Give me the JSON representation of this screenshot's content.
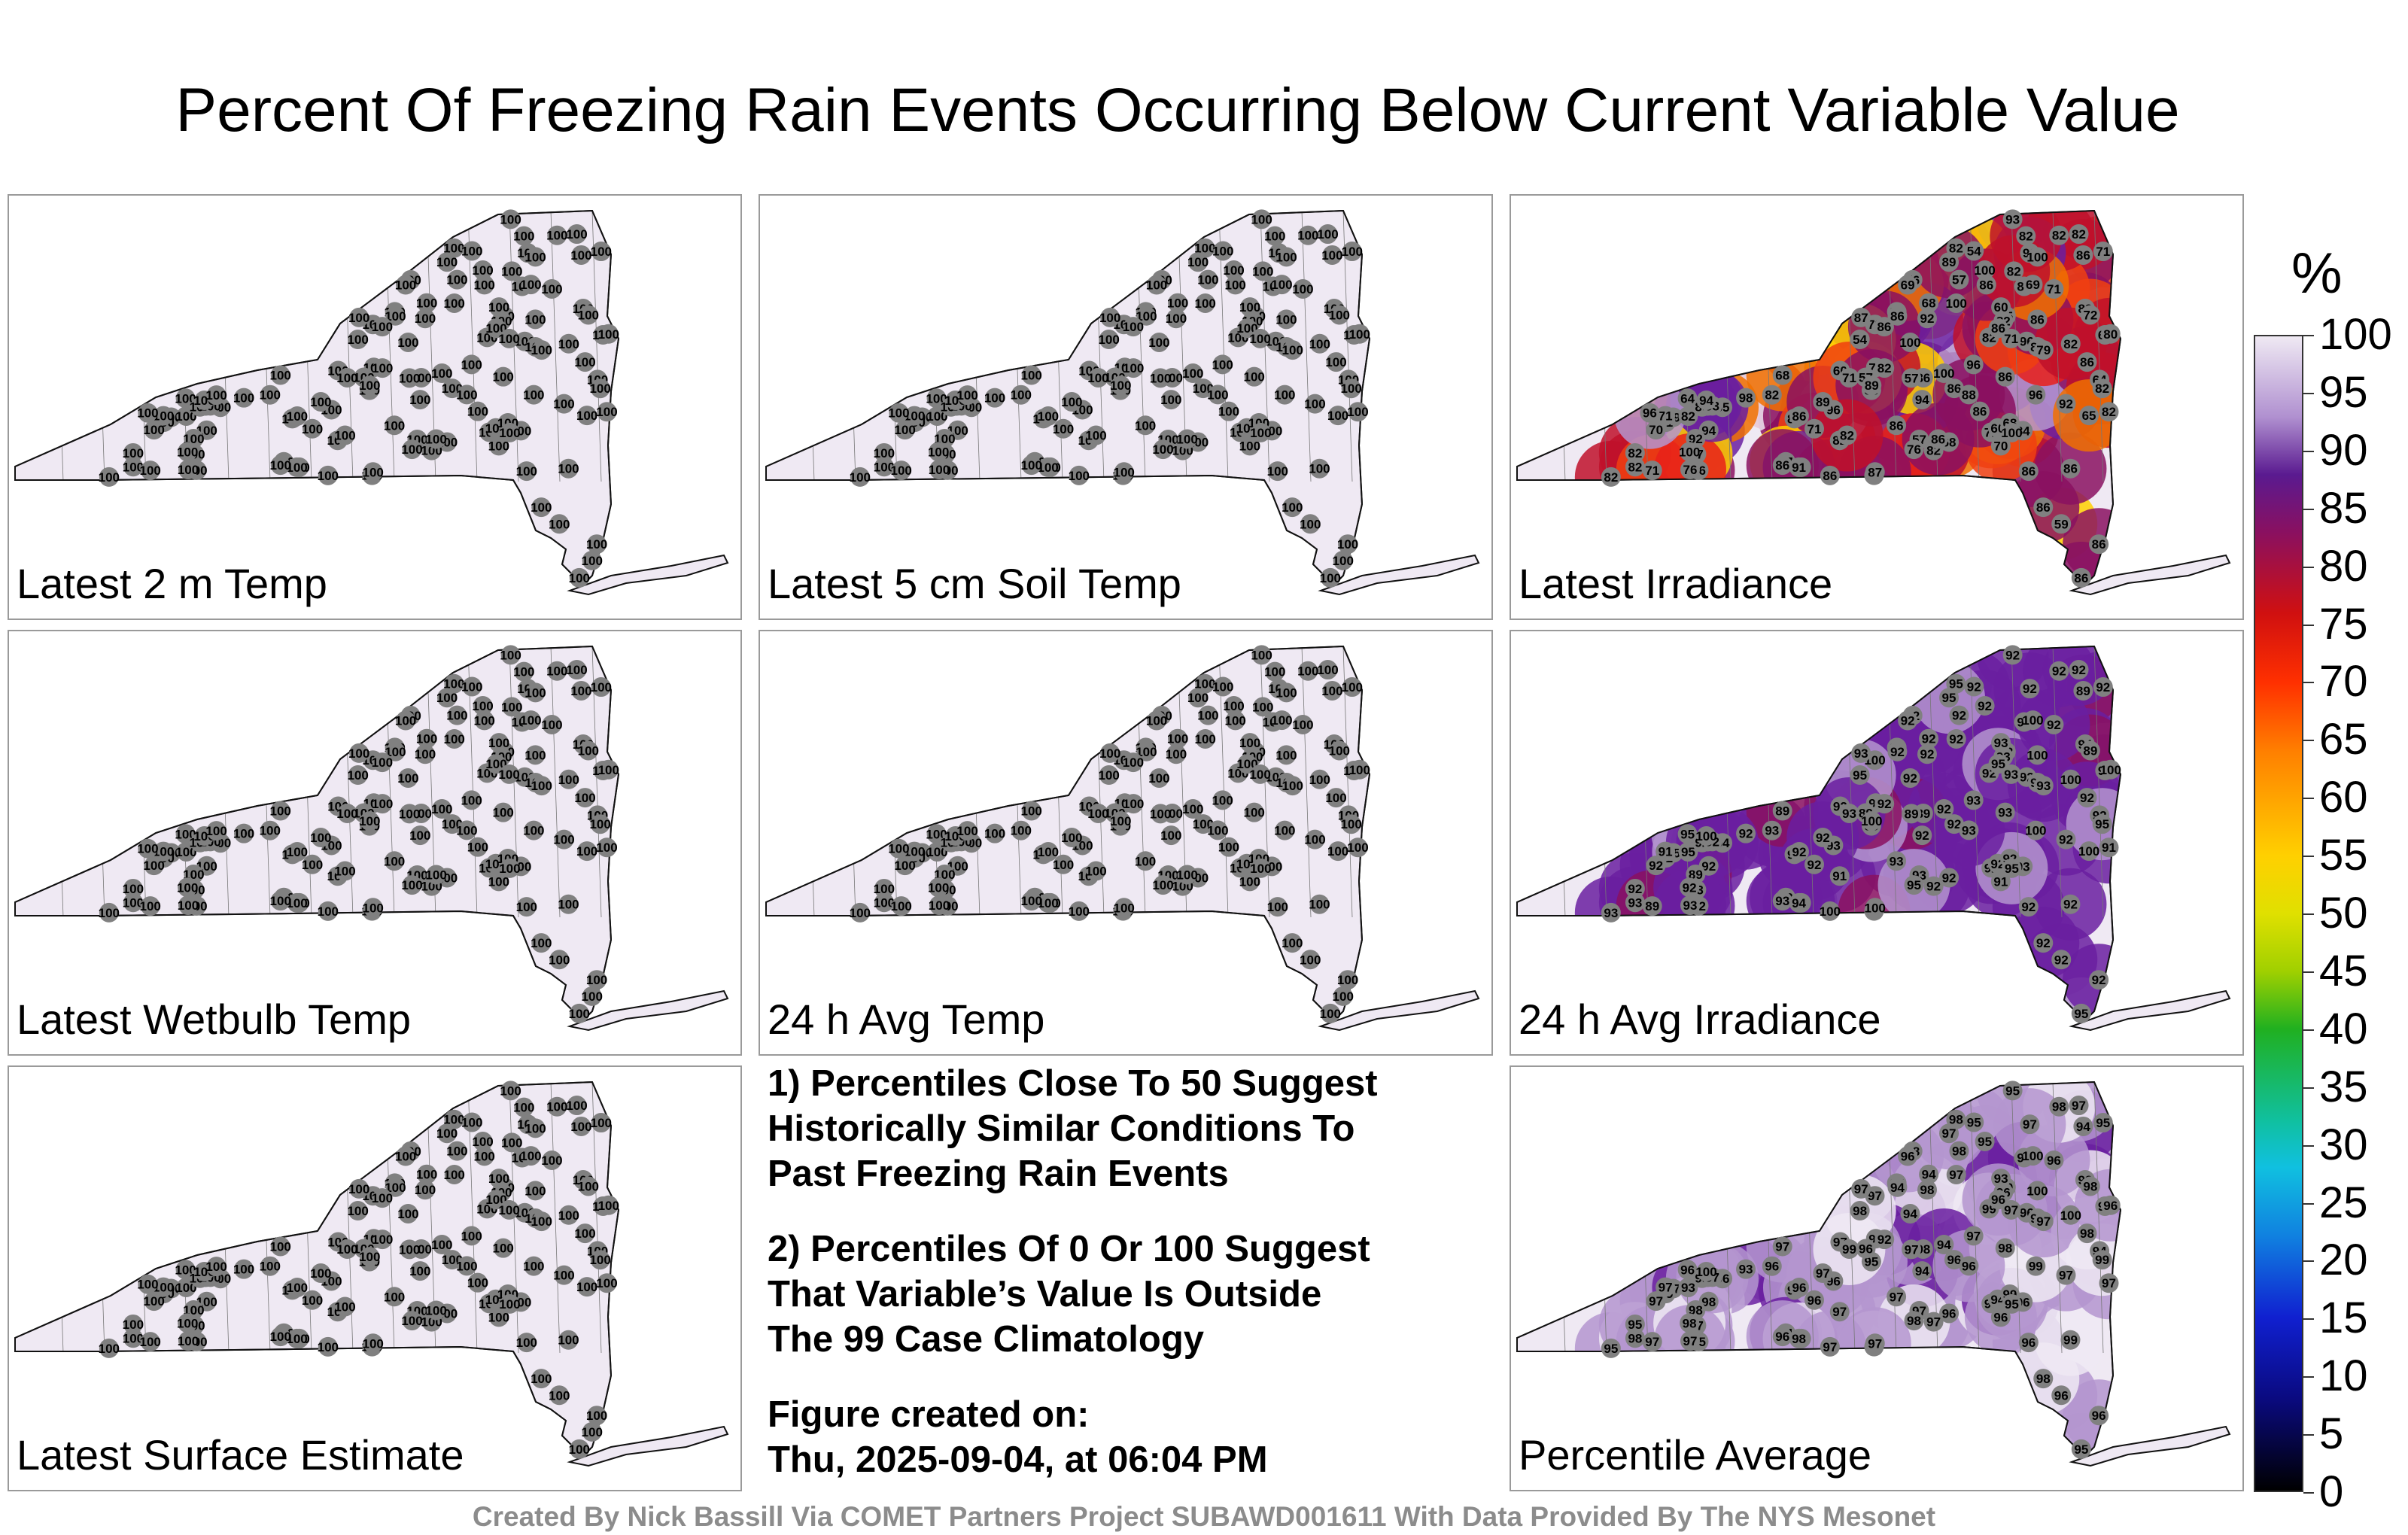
{
  "title": "Percent Of Freezing Rain Events Occurring Below Current Variable Value",
  "panels": [
    {
      "label": "Latest 2 m Temp",
      "values": [
        100,
        100,
        100,
        100,
        100,
        100,
        100,
        100,
        100,
        100,
        100,
        100,
        100,
        100,
        100,
        100,
        100,
        100,
        100,
        100,
        100,
        100,
        100,
        100,
        100,
        100,
        100,
        100,
        100,
        100,
        100,
        100,
        100,
        100,
        100,
        100,
        100,
        100,
        100,
        100,
        100,
        100,
        100,
        100,
        100,
        100,
        100,
        100,
        100,
        100,
        100,
        100,
        100,
        100,
        100,
        100,
        100,
        100,
        100,
        100,
        100,
        100,
        100,
        100,
        100,
        100,
        100,
        100,
        100,
        100,
        100,
        100,
        100,
        100,
        100,
        100,
        100,
        100,
        100,
        100,
        100,
        100,
        100,
        100,
        100,
        100,
        100,
        100,
        100,
        100,
        100,
        100,
        100,
        100,
        100,
        100,
        100,
        100,
        100,
        100,
        100,
        100,
        100,
        100,
        100,
        100,
        100,
        100,
        100,
        100,
        100,
        100,
        100,
        100,
        100,
        100,
        100,
        100,
        100,
        100,
        100,
        100,
        100,
        100,
        100,
        100,
        100
      ]
    },
    {
      "label": "Latest 5 cm Soil Temp",
      "values": [
        100,
        100,
        100,
        100,
        100,
        100,
        100,
        100,
        100,
        100,
        100,
        100,
        100,
        100,
        100,
        100,
        100,
        100,
        100,
        100,
        100,
        100,
        100,
        100,
        100,
        100,
        100,
        100,
        100,
        100,
        100,
        100,
        100,
        100,
        100,
        100,
        100,
        100,
        100,
        100,
        100,
        100,
        100,
        100,
        100,
        100,
        100,
        100,
        100,
        100,
        100,
        100,
        100,
        100,
        100,
        100,
        100,
        100,
        100,
        100,
        100,
        100,
        100,
        100,
        100,
        100,
        100,
        100,
        100,
        100,
        100,
        100,
        100,
        100,
        100,
        100,
        100,
        100,
        100,
        100,
        100,
        100,
        100,
        100,
        100,
        100,
        100,
        100,
        100,
        100,
        100,
        100,
        100,
        100,
        100,
        100,
        100,
        100,
        100,
        100,
        100,
        100,
        100,
        100,
        100,
        100,
        100,
        100,
        100,
        100,
        100,
        100,
        100,
        100,
        100,
        100,
        100,
        100,
        100,
        100,
        100,
        100,
        100,
        100,
        100,
        100,
        100
      ]
    },
    {
      "label": "Latest Irradiance",
      "values": [
        68,
        60,
        79,
        82,
        65,
        85,
        72,
        57,
        59,
        86,
        98,
        86,
        82,
        68,
        86,
        71,
        57,
        93,
        86,
        84,
        86,
        82,
        71,
        76,
        96,
        85,
        82,
        70,
        71,
        82,
        86,
        89,
        76,
        86,
        60,
        86,
        100,
        86,
        96,
        94,
        60,
        86,
        86,
        68,
        71,
        100,
        100,
        94,
        96,
        92,
        82,
        69,
        82,
        64,
        54,
        60,
        68,
        82,
        100,
        89,
        82,
        65,
        86,
        92,
        57,
        64,
        70,
        86,
        82,
        86,
        57,
        89,
        86,
        82,
        92,
        71,
        72,
        71,
        100,
        87,
        100,
        86,
        100,
        82,
        86,
        86,
        57,
        76,
        71,
        93,
        96,
        82,
        57,
        89,
        86,
        88,
        86,
        76,
        54,
        71,
        91,
        79,
        86,
        87,
        71,
        86,
        82,
        82,
        92,
        80,
        86,
        82,
        69,
        94,
        65,
        89,
        86,
        82,
        82,
        86,
        86,
        82,
        100,
        96,
        86
      ],
      "tint": "hot"
    },
    {
      "label": "Latest Wetbulb Temp",
      "values": [
        100,
        100,
        100,
        100,
        100,
        100,
        100,
        100,
        100,
        100,
        100,
        100,
        100,
        100,
        100,
        100,
        100,
        100,
        100,
        100,
        100,
        100,
        100,
        100,
        100,
        100,
        100,
        100,
        100,
        100,
        100,
        100,
        100,
        100,
        100,
        100,
        100,
        100,
        100,
        100,
        100,
        100,
        100,
        100,
        100,
        100,
        100,
        100,
        100,
        100,
        100,
        100,
        100,
        100,
        100,
        100,
        100,
        100,
        100,
        100,
        100,
        100,
        100,
        100,
        100,
        100,
        100,
        100,
        100,
        100,
        100,
        100,
        100,
        100,
        100,
        100,
        100,
        100,
        100,
        100,
        100,
        100,
        100,
        100,
        100,
        100,
        100,
        100,
        100,
        100,
        100,
        100,
        100,
        100,
        100,
        100,
        100,
        100,
        100,
        100,
        100,
        100,
        100,
        100,
        100,
        100,
        100,
        100,
        100,
        100,
        100,
        100,
        100,
        100,
        100,
        100,
        100,
        100,
        100,
        100,
        100,
        100,
        100,
        100,
        100,
        100,
        100
      ]
    },
    {
      "label": "24 h Avg Temp",
      "values": [
        100,
        100,
        100,
        100,
        100,
        100,
        100,
        100,
        100,
        100,
        100,
        100,
        100,
        100,
        100,
        100,
        100,
        100,
        100,
        100,
        100,
        100,
        100,
        100,
        100,
        100,
        100,
        100,
        100,
        100,
        100,
        100,
        100,
        100,
        100,
        100,
        100,
        100,
        100,
        100,
        100,
        100,
        100,
        100,
        100,
        100,
        100,
        100,
        100,
        100,
        100,
        100,
        100,
        100,
        100,
        100,
        100,
        100,
        100,
        100,
        100,
        100,
        100,
        100,
        100,
        100,
        100,
        100,
        100,
        100,
        100,
        100,
        100,
        100,
        100,
        100,
        100,
        100,
        100,
        100,
        100,
        100,
        100,
        100,
        100,
        100,
        100,
        100,
        100,
        100,
        100,
        100,
        100,
        100,
        100,
        100,
        100,
        100,
        100,
        100,
        100,
        100,
        100,
        100,
        100,
        100,
        100,
        100,
        100,
        100,
        100,
        100,
        100,
        100,
        100,
        100,
        100,
        100,
        100,
        100,
        100,
        100,
        100,
        100,
        100,
        100,
        100
      ]
    },
    {
      "label": "24 h Avg Irradiance",
      "values": [
        92,
        95,
        95,
        93,
        94,
        92,
        100,
        93,
        92,
        92,
        92,
        93,
        95,
        92,
        92,
        92,
        92,
        92,
        93,
        93,
        95,
        92,
        92,
        92,
        92,
        93,
        93,
        92,
        92,
        91,
        89,
        89,
        91,
        92,
        92,
        92,
        92,
        92,
        93,
        92,
        92,
        89,
        92,
        89,
        91,
        92,
        92,
        92,
        93,
        92,
        93,
        92,
        93,
        95,
        92,
        93,
        92,
        92,
        92,
        95,
        95,
        94,
        92,
        89,
        89,
        92,
        91,
        92,
        92,
        92,
        93,
        94,
        95,
        92,
        92,
        89,
        89,
        92,
        92,
        93,
        92,
        93,
        95,
        92,
        93,
        95,
        93,
        93,
        92,
        92,
        100,
        91,
        89,
        92,
        92,
        93,
        92,
        95,
        95,
        93,
        94,
        93,
        100,
        100,
        93,
        93,
        92,
        95,
        92,
        100,
        100,
        100,
        100,
        100,
        100,
        100
      ],
      "tint": "purple"
    },
    {
      "label": "Latest Surface Estimate",
      "values": [
        100,
        100,
        100,
        100,
        100,
        100,
        100,
        100,
        100,
        100,
        100,
        100,
        100,
        100,
        100,
        100,
        100,
        100,
        100,
        100,
        100,
        100,
        100,
        100,
        100,
        100,
        100,
        100,
        100,
        100,
        100,
        100,
        100,
        100,
        100,
        100,
        100,
        100,
        100,
        100,
        100,
        100,
        100,
        100,
        100,
        100,
        100,
        100,
        100,
        100,
        100,
        100,
        100,
        100,
        100,
        100,
        100,
        100,
        100,
        100,
        100,
        100,
        100,
        100,
        100,
        100,
        100,
        100,
        100,
        100,
        100,
        100,
        100,
        100,
        100,
        100,
        100,
        100,
        100,
        100,
        100,
        100,
        100,
        100,
        100,
        100,
        100,
        100,
        100,
        100,
        100,
        100,
        100,
        100,
        100,
        100,
        100,
        100,
        100,
        100,
        100,
        100,
        100,
        100,
        100,
        100,
        100,
        100,
        100,
        100,
        100,
        100,
        100,
        100,
        100,
        100,
        100,
        100,
        100,
        100,
        100,
        100,
        100,
        100,
        100,
        100,
        100
      ]
    },
    {
      "label": "Percentile Average",
      "values": [
        94,
        94,
        97,
        96,
        94,
        99,
        97,
        97,
        96,
        93,
        93,
        97,
        98,
        96,
        96,
        95,
        98,
        95,
        97,
        96,
        95,
        97,
        95,
        98,
        96,
        93,
        95,
        97,
        98,
        97,
        98,
        98,
        98,
        96,
        97,
        99,
        95,
        96,
        96,
        98,
        94,
        94,
        94,
        97,
        97,
        97,
        94,
        94,
        97,
        98,
        98,
        96,
        96,
        96,
        95,
        93,
        99,
        99,
        97,
        97,
        93,
        96,
        95,
        98,
        97,
        94,
        96,
        95,
        92,
        96,
        97,
        93,
        95,
        95,
        97,
        97,
        98,
        96,
        98,
        97,
        94,
        98,
        95,
        97,
        94,
        96,
        94,
        97,
        96,
        97,
        99,
        97,
        96,
        97,
        98,
        96,
        98,
        98,
        98,
        99,
        98,
        97,
        97,
        97,
        97,
        96,
        98,
        99,
        97,
        96,
        100,
        100,
        100,
        100
      ]
    }
  ],
  "notes": {
    "line1": "1) Percentiles Close To 50 Suggest",
    "line2": "Historically Similar Conditions To",
    "line3": "Past Freezing Rain Events",
    "line4": "2) Percentiles Of 0 Or 100 Suggest",
    "line5": "That Variable’s Value Is Outside",
    "line6": "The 99 Case Climatology",
    "line7": "Figure created on:",
    "line8": "Thu, 2025-09-04, at 06:04 PM"
  },
  "legend": {
    "unit": "%",
    "ticks": [
      "100",
      "95",
      "90",
      "85",
      "80",
      "75",
      "70",
      "65",
      "60",
      "55",
      "50",
      "45",
      "40",
      "35",
      "30",
      "25",
      "20",
      "15",
      "10",
      "5",
      "0"
    ]
  },
  "footer": "Created By Nick Bassill Via COMET Partners Project SUBAWD001611 With Data Provided By The NYS Mesonet",
  "colors": {
    "fill_100": "#efe9f3",
    "fill_purple": "#6a1fa0",
    "station": "#808080"
  }
}
